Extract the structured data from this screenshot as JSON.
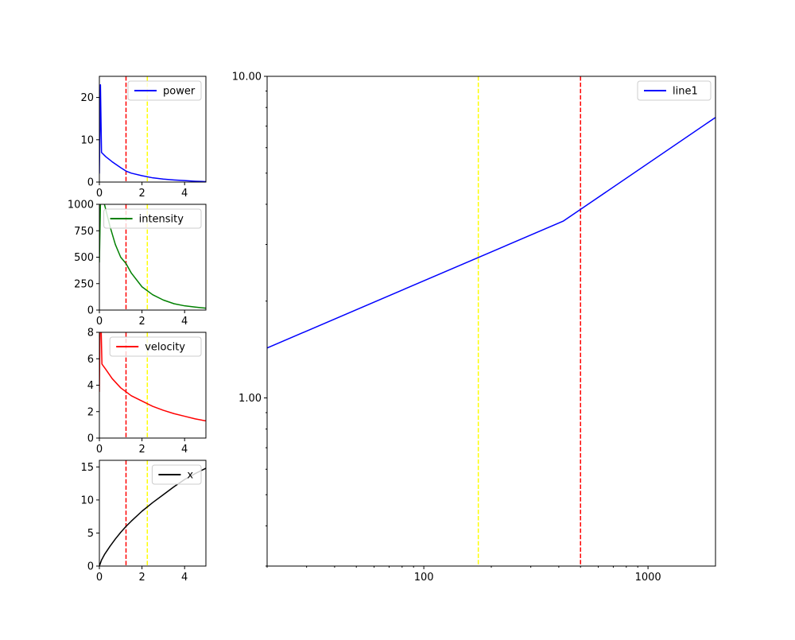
{
  "chart_data": [
    {
      "type": "line",
      "panel": "power",
      "xlim": [
        0,
        5
      ],
      "ylim": [
        0,
        25
      ],
      "xticks": [
        0,
        2,
        4
      ],
      "yticks": [
        0,
        10,
        20
      ],
      "series": [
        {
          "name": "power",
          "color": "#0000ff",
          "x": [
            0.0,
            0.05,
            0.1,
            0.3,
            0.6,
            1.0,
            1.25,
            1.5,
            2.0,
            2.5,
            3.0,
            3.5,
            4.0,
            4.5,
            5.0
          ],
          "y": [
            2.0,
            23.0,
            7.0,
            6.0,
            4.8,
            3.4,
            2.6,
            2.1,
            1.5,
            1.0,
            0.7,
            0.5,
            0.35,
            0.2,
            0.1
          ]
        }
      ],
      "vlines": [
        {
          "x": 1.25,
          "color": "#ff0000"
        },
        {
          "x": 2.25,
          "color": "#ffff00"
        }
      ],
      "legend": "upper right"
    },
    {
      "type": "line",
      "panel": "intensity",
      "xlim": [
        0,
        5
      ],
      "ylim": [
        0,
        1000
      ],
      "xticks": [
        0,
        2,
        4
      ],
      "yticks": [
        0,
        250,
        500,
        750,
        1000
      ],
      "series": [
        {
          "name": "intensity",
          "color": "#008000",
          "x": [
            0.0,
            0.05,
            0.15,
            0.25,
            0.5,
            0.75,
            1.0,
            1.25,
            1.5,
            2.0,
            2.5,
            3.0,
            3.5,
            4.0,
            4.5,
            5.0
          ],
          "y": [
            450,
            1000,
            1050,
            990,
            790,
            620,
            500,
            440,
            350,
            220,
            145,
            95,
            60,
            40,
            28,
            18
          ]
        }
      ],
      "vlines": [
        {
          "x": 1.25,
          "color": "#ff0000"
        },
        {
          "x": 2.25,
          "color": "#ffff00"
        }
      ],
      "legend": "upper right"
    },
    {
      "type": "line",
      "panel": "velocity",
      "xlim": [
        0,
        5
      ],
      "ylim": [
        0,
        8
      ],
      "xticks": [
        0,
        2,
        4
      ],
      "yticks": [
        0,
        2,
        4,
        6,
        8
      ],
      "series": [
        {
          "name": "velocity",
          "color": "#ff0000",
          "x": [
            0.0,
            0.03,
            0.08,
            0.12,
            0.3,
            0.6,
            1.0,
            1.25,
            1.5,
            2.0,
            2.5,
            3.0,
            3.5,
            4.0,
            4.5,
            5.0
          ],
          "y": [
            3.5,
            8.5,
            8.5,
            5.6,
            5.2,
            4.5,
            3.8,
            3.5,
            3.2,
            2.8,
            2.4,
            2.1,
            1.85,
            1.65,
            1.45,
            1.3
          ]
        }
      ],
      "vlines": [
        {
          "x": 1.25,
          "color": "#ff0000"
        },
        {
          "x": 2.25,
          "color": "#ffff00"
        }
      ],
      "legend": "upper right"
    },
    {
      "type": "line",
      "panel": "x",
      "xlim": [
        0,
        5
      ],
      "ylim": [
        0,
        16
      ],
      "xticks": [
        0,
        2,
        4
      ],
      "yticks": [
        0,
        5,
        10,
        15
      ],
      "series": [
        {
          "name": "x",
          "color": "#000000",
          "x": [
            0.0,
            0.1,
            0.25,
            0.5,
            0.75,
            1.0,
            1.25,
            1.5,
            2.0,
            2.5,
            3.0,
            3.5,
            4.0,
            4.5,
            5.0
          ],
          "y": [
            0.0,
            0.9,
            1.8,
            3.0,
            4.1,
            5.1,
            6.0,
            6.8,
            8.3,
            9.6,
            10.8,
            12.0,
            13.1,
            14.0,
            14.8
          ]
        }
      ],
      "vlines": [
        {
          "x": 1.25,
          "color": "#ff0000"
        },
        {
          "x": 2.25,
          "color": "#ffff00"
        }
      ],
      "legend": "upper right"
    },
    {
      "type": "line",
      "panel": "main",
      "xscale": "log",
      "yscale": "log",
      "xlim": [
        20,
        2000
      ],
      "ylim": [
        0.3,
        10
      ],
      "xticks": [
        100,
        1000
      ],
      "xtick_labels": [
        "100",
        "1000"
      ],
      "yticks": [
        1,
        10
      ],
      "ytick_labels": [
        "1.00",
        "10.00"
      ],
      "series": [
        {
          "name": "line1",
          "color": "#0000ff",
          "x": [
            20,
            420,
            2000
          ],
          "y": [
            1.43,
            3.55,
            7.45
          ]
        }
      ],
      "vlines": [
        {
          "x": 175,
          "color": "#ffff00"
        },
        {
          "x": 500,
          "color": "#ff0000"
        }
      ],
      "legend": "upper right"
    }
  ]
}
